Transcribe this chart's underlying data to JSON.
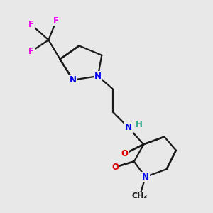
{
  "background_color": "#e8e8e8",
  "bond_color": "#1a1a1a",
  "atom_colors": {
    "N": "#0000ee",
    "O": "#dd0000",
    "F": "#ee00ee",
    "H": "#2aaa8a",
    "C": "#1a1a1a"
  },
  "line_width": 1.6,
  "font_size": 8.5,
  "figsize": [
    3.0,
    3.0
  ],
  "dpi": 100
}
